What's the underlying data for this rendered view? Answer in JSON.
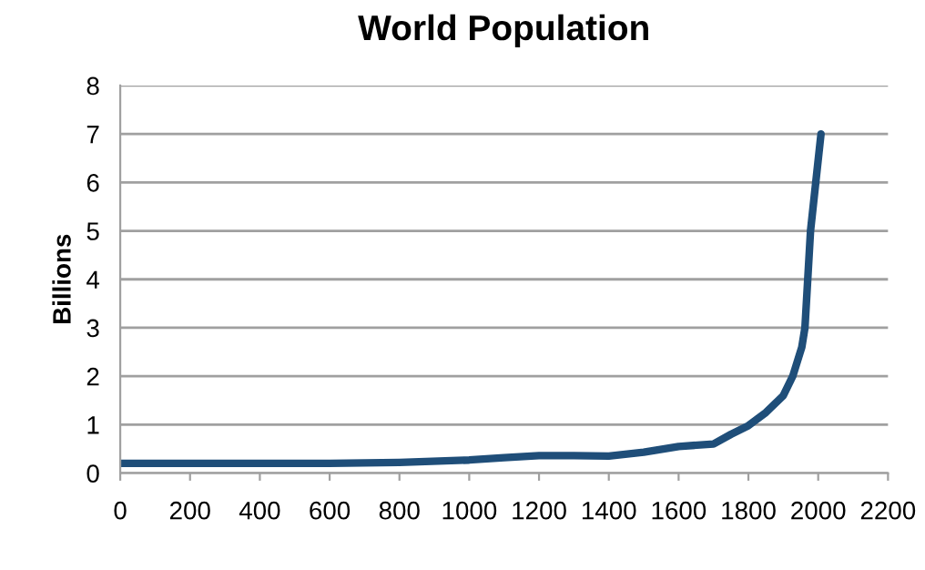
{
  "chart_data": {
    "type": "line",
    "title": "World Population",
    "ylabel": "Billions",
    "x": [
      0,
      200,
      400,
      600,
      800,
      1000,
      1100,
      1200,
      1300,
      1400,
      1500,
      1600,
      1700,
      1750,
      1800,
      1850,
      1900,
      1927,
      1953,
      1962,
      1978,
      1993,
      2008
    ],
    "series": [
      {
        "color": "#1f4e79",
        "values": [
          0.2,
          0.2,
          0.2,
          0.2,
          0.22,
          0.27,
          0.32,
          0.36,
          0.36,
          0.35,
          0.43,
          0.55,
          0.6,
          0.8,
          0.98,
          1.25,
          1.6,
          2.0,
          2.6,
          3.0,
          5.0,
          6.0,
          7.0
        ]
      }
    ],
    "xlim": [
      0,
      2200
    ],
    "xticks": [
      0,
      200,
      400,
      600,
      800,
      1000,
      1200,
      1400,
      1600,
      1800,
      2000,
      2200
    ],
    "ylim": [
      0,
      8
    ],
    "yticks": [
      0,
      1,
      2,
      3,
      4,
      5,
      6,
      7,
      8
    ],
    "grid": "y",
    "marker": "none",
    "line_style": "solid"
  }
}
